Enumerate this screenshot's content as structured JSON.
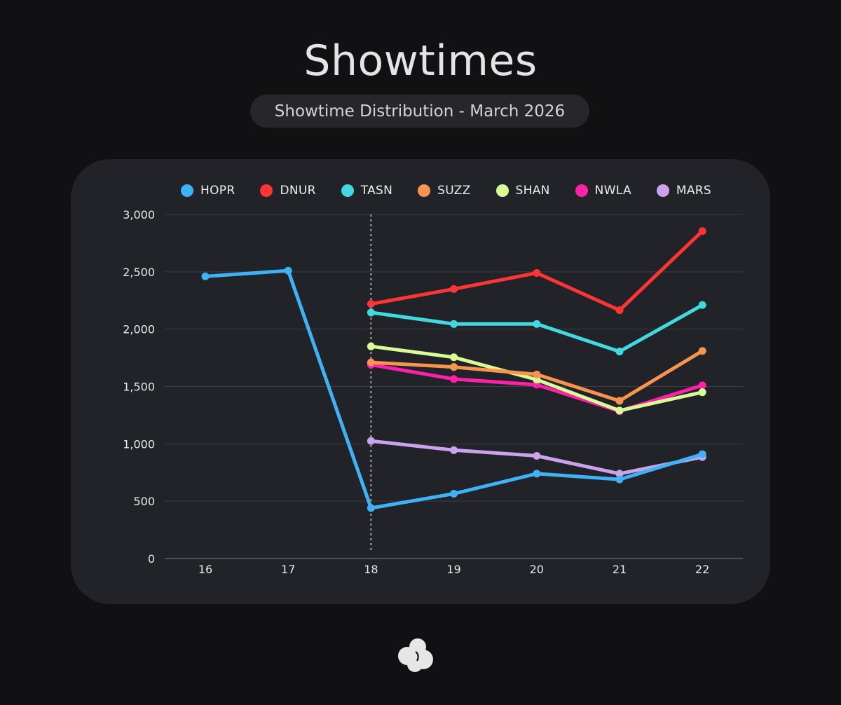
{
  "header": {
    "title": "Showtimes",
    "subtitle": "Showtime Distribution - March 2026"
  },
  "logo": {
    "icon": "cloud-logo-icon",
    "color": "#e6e6e6"
  },
  "chart_data": {
    "type": "line",
    "categories": [
      "16",
      "17",
      "18",
      "19",
      "20",
      "21",
      "22"
    ],
    "ylim": [
      0,
      3000
    ],
    "yticks": [
      0,
      500,
      1000,
      1500,
      2000,
      2500,
      3000
    ],
    "ytick_labels": [
      "0",
      "500",
      "1,000",
      "1,500",
      "2,000",
      "2,500",
      "3,000"
    ],
    "grid": true,
    "legend_position": "top",
    "marker_category": "18",
    "series": [
      {
        "name": "HOPR",
        "color": "#3db3f5",
        "values": [
          2460,
          2510,
          440,
          565,
          740,
          690,
          910
        ]
      },
      {
        "name": "DNUR",
        "color": "#ff3535",
        "values": [
          null,
          null,
          2220,
          2350,
          2490,
          2165,
          2855
        ]
      },
      {
        "name": "TASN",
        "color": "#3fd9df",
        "values": [
          null,
          null,
          2145,
          2045,
          2045,
          1805,
          2210
        ]
      },
      {
        "name": "SUZZ",
        "color": "#f7944d",
        "values": [
          null,
          null,
          1710,
          1670,
          1605,
          1375,
          1810
        ]
      },
      {
        "name": "SHAN",
        "color": "#d8fb96",
        "values": [
          null,
          null,
          1850,
          1755,
          1560,
          1290,
          1450
        ]
      },
      {
        "name": "NWLA",
        "color": "#ff22a8",
        "values": [
          null,
          null,
          1690,
          1565,
          1515,
          1285,
          1510
        ]
      },
      {
        "name": "MARS",
        "color": "#c9a3ec",
        "values": [
          null,
          null,
          1025,
          945,
          895,
          740,
          885
        ]
      }
    ]
  }
}
